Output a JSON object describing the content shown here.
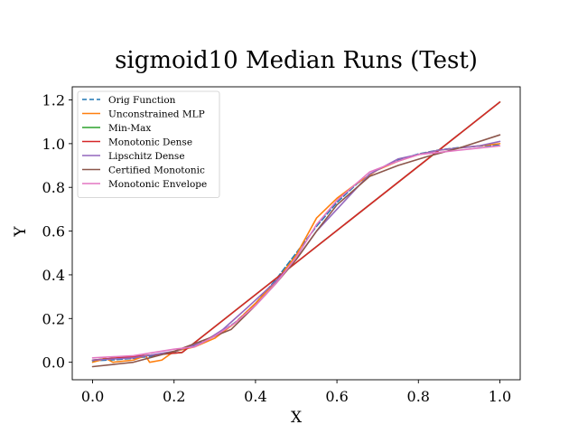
{
  "chart_data": {
    "type": "line",
    "title": "sigmoid10 Median Runs (Test)",
    "xlabel": "X",
    "ylabel": "Y",
    "xlim": [
      -0.05,
      1.05
    ],
    "ylim": [
      -0.08,
      1.26
    ],
    "xticks": [
      0.0,
      0.2,
      0.4,
      0.6,
      0.8,
      1.0
    ],
    "xtick_labels": [
      "0.0",
      "0.2",
      "0.4",
      "0.6",
      "0.8",
      "1.0"
    ],
    "yticks": [
      0.0,
      0.2,
      0.4,
      0.6,
      0.8,
      1.0,
      1.2
    ],
    "ytick_labels": [
      "0.0",
      "0.2",
      "0.4",
      "0.6",
      "0.8",
      "1.0",
      "1.2"
    ],
    "grid": false,
    "legend_position": "upper-left",
    "series": [
      {
        "name": "Orig Function",
        "color": "#1f77b4",
        "dashed": true,
        "x": [
          0,
          0.05,
          0.1,
          0.15,
          0.2,
          0.25,
          0.3,
          0.35,
          0.4,
          0.45,
          0.5,
          0.55,
          0.6,
          0.65,
          0.7,
          0.75,
          0.8,
          0.85,
          0.9,
          0.95,
          1.0
        ],
        "y": [
          0.007,
          0.011,
          0.018,
          0.029,
          0.047,
          0.076,
          0.119,
          0.182,
          0.269,
          0.378,
          0.5,
          0.622,
          0.731,
          0.818,
          0.881,
          0.924,
          0.953,
          0.971,
          0.982,
          0.989,
          0.993
        ]
      },
      {
        "name": "Unconstrained MLP",
        "color": "#ff7f0e",
        "dashed": false,
        "x": [
          0,
          0.02,
          0.03,
          0.05,
          0.1,
          0.13,
          0.14,
          0.17,
          0.2,
          0.25,
          0.3,
          0.35,
          0.4,
          0.45,
          0.5,
          0.55,
          0.6,
          0.65,
          0.7,
          0.75,
          0.8,
          0.85,
          0.9,
          0.95,
          1.0
        ],
        "y": [
          0.0,
          0.01,
          0.02,
          0.0,
          0.01,
          0.03,
          0.0,
          0.01,
          0.05,
          0.07,
          0.11,
          0.18,
          0.27,
          0.37,
          0.49,
          0.66,
          0.75,
          0.82,
          0.88,
          0.92,
          0.95,
          0.97,
          0.98,
          0.99,
          1.0
        ]
      },
      {
        "name": "Min-Max",
        "color": "#2ca02c",
        "dashed": false,
        "x": [
          0,
          0.22,
          1.0
        ],
        "y": [
          0.01,
          0.045,
          1.19
        ]
      },
      {
        "name": "Monotonic Dense",
        "color": "#d62728",
        "dashed": false,
        "x": [
          0,
          0.22,
          1.0
        ],
        "y": [
          0.01,
          0.045,
          1.19
        ]
      },
      {
        "name": "Lipschitz Dense",
        "color": "#9467bd",
        "dashed": false,
        "x": [
          0,
          0.1,
          0.2,
          0.27,
          0.32,
          0.38,
          0.45,
          0.5,
          0.55,
          0.6,
          0.68,
          0.75,
          0.8,
          0.85,
          0.9,
          0.95,
          1.0
        ],
        "y": [
          0.01,
          0.02,
          0.05,
          0.09,
          0.15,
          0.25,
          0.37,
          0.47,
          0.6,
          0.7,
          0.86,
          0.93,
          0.95,
          0.97,
          0.98,
          0.99,
          1.01
        ]
      },
      {
        "name": "Certified Monotonic",
        "color": "#8c564b",
        "dashed": false,
        "x": [
          0,
          0.1,
          0.2,
          0.3,
          0.34,
          0.4,
          0.45,
          0.5,
          0.55,
          0.6,
          0.68,
          0.75,
          0.82,
          0.9,
          1.0
        ],
        "y": [
          -0.02,
          0.0,
          0.05,
          0.12,
          0.15,
          0.26,
          0.36,
          0.47,
          0.6,
          0.72,
          0.85,
          0.9,
          0.94,
          0.98,
          1.04
        ]
      },
      {
        "name": "Monotonic Envelope",
        "color": "#e377c2",
        "dashed": false,
        "x": [
          0,
          0.1,
          0.2,
          0.25,
          0.3,
          0.35,
          0.4,
          0.45,
          0.5,
          0.55,
          0.6,
          0.68,
          0.75,
          0.8,
          0.85,
          0.9,
          0.95,
          1.0
        ],
        "y": [
          0.02,
          0.03,
          0.06,
          0.07,
          0.12,
          0.18,
          0.26,
          0.36,
          0.48,
          0.63,
          0.74,
          0.87,
          0.92,
          0.95,
          0.96,
          0.97,
          0.98,
          0.99
        ]
      }
    ]
  }
}
